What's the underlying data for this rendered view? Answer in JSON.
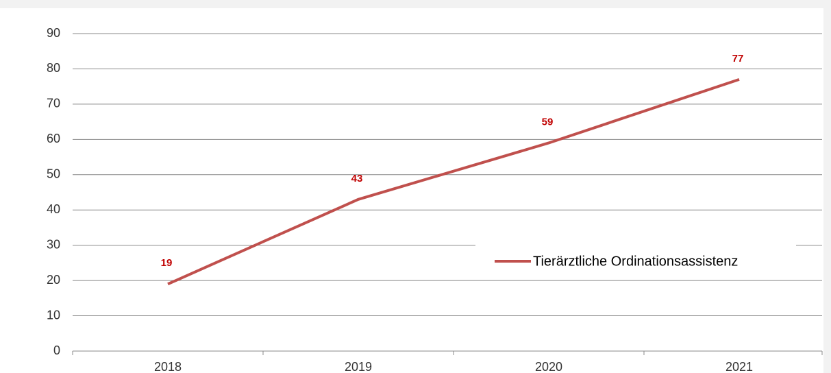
{
  "chart_data": {
    "type": "line",
    "categories": [
      "2018",
      "2019",
      "2020",
      "2021"
    ],
    "series": [
      {
        "name": "Tierärztliche Ordinationsassistenz",
        "color": "#c0504d",
        "values": [
          19,
          43,
          59,
          77
        ]
      }
    ],
    "ylim": [
      0,
      90
    ],
    "yticks": [
      0,
      10,
      20,
      30,
      40,
      50,
      60,
      70,
      80,
      90
    ],
    "grid": true,
    "label_color": "#c00000"
  }
}
